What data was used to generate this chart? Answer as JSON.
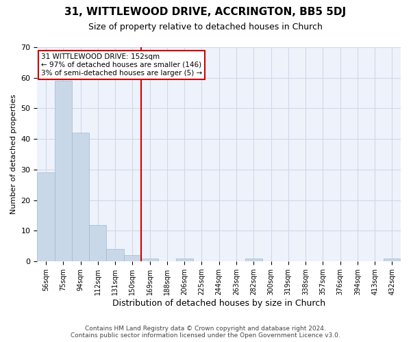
{
  "title": "31, WITTLEWOOD DRIVE, ACCRINGTON, BB5 5DJ",
  "subtitle": "Size of property relative to detached houses in Church",
  "xlabel": "Distribution of detached houses by size in Church",
  "ylabel": "Number of detached properties",
  "categories": [
    "56sqm",
    "75sqm",
    "94sqm",
    "112sqm",
    "131sqm",
    "150sqm",
    "169sqm",
    "188sqm",
    "206sqm",
    "225sqm",
    "244sqm",
    "263sqm",
    "282sqm",
    "300sqm",
    "319sqm",
    "338sqm",
    "357sqm",
    "376sqm",
    "394sqm",
    "413sqm",
    "432sqm"
  ],
  "values": [
    29,
    59,
    42,
    12,
    4,
    2,
    1,
    0,
    1,
    0,
    0,
    0,
    1,
    0,
    0,
    0,
    0,
    0,
    0,
    0,
    1
  ],
  "bar_color": "#c8d8e8",
  "bar_edge_color": "#a0b8d0",
  "grid_color": "#d0d8e8",
  "background_color": "#eef2fa",
  "vline_x_index": 5,
  "vline_color": "#cc0000",
  "annotation_text": "31 WITTLEWOOD DRIVE: 152sqm\n← 97% of detached houses are smaller (146)\n3% of semi-detached houses are larger (5) →",
  "annotation_box_color": "#cc0000",
  "footer_line1": "Contains HM Land Registry data © Crown copyright and database right 2024.",
  "footer_line2": "Contains public sector information licensed under the Open Government Licence v3.0.",
  "ylim": [
    0,
    70
  ],
  "yticks": [
    0,
    10,
    20,
    30,
    40,
    50,
    60,
    70
  ]
}
